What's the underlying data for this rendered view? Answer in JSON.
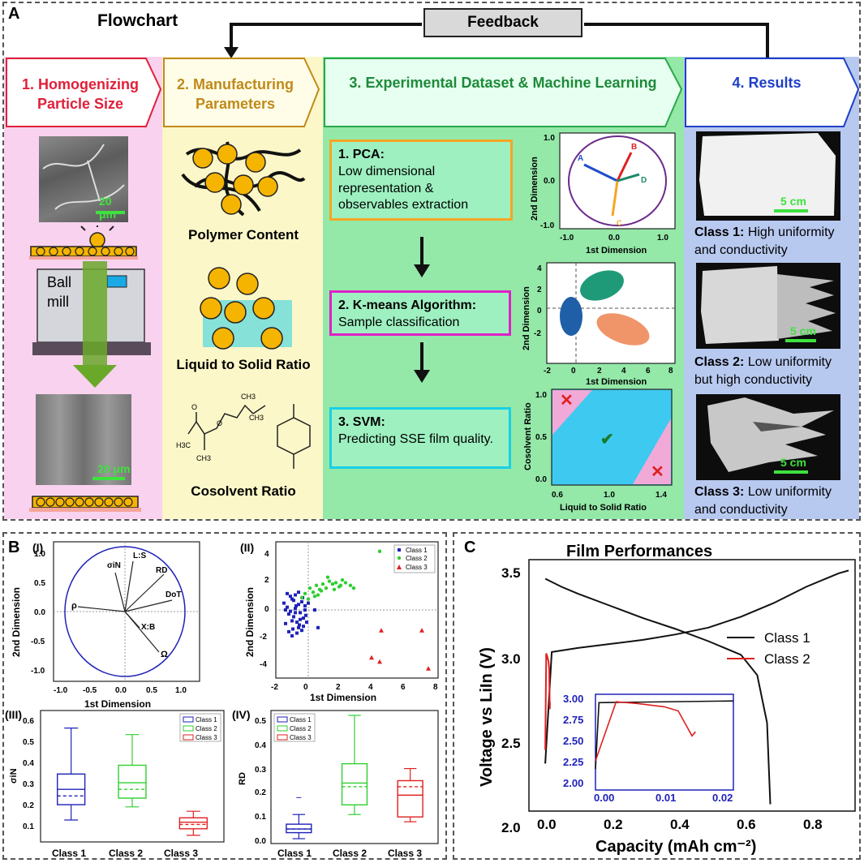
{
  "panel_a": {
    "letter": "A",
    "title": "Flowchart",
    "feedback": "Feedback",
    "col1": {
      "num": "1.",
      "title_l1": "Homogenizing",
      "title_l2": "Particle Size",
      "scale1": "20 μm",
      "scale2": "20 μm",
      "ball_l1": "Ball",
      "ball_l2": "mill"
    },
    "col2": {
      "num": "2.",
      "title_l1": "Manufacturing",
      "title_l2": "Parameters",
      "label1": "Polymer Content",
      "label2": "Liquid to Solid Ratio",
      "label3": "Cosolvent Ratio",
      "mol": {
        "ch3_a": "CH3",
        "ch3_b": "CH3",
        "h3c": "H3C",
        "ch3_c": "CH3",
        "o1": "O",
        "o2": "O"
      }
    },
    "col3": {
      "num": "3.",
      "title": "Experimental Dataset & Machine Learning",
      "box1_title": "1. PCA:",
      "box1_text": "Low dimensional representation & observables extraction",
      "box2_title": "2. K-means Algorithm:",
      "box2_text": "Sample classification",
      "box3_title": "3. SVM:",
      "box3_text": "Predicting SSE film quality.",
      "pca_xlabel": "1st Dimension",
      "pca_ylabel": "2nd Dimension",
      "pca_xticks": [
        "-1.0",
        "0.0",
        "1.0"
      ],
      "pca_yticks": [
        "1.0",
        "0.0",
        "-1.0"
      ],
      "pca_vectors": [
        "A",
        "B",
        "C",
        "D"
      ],
      "km_xlabel": "1st Dimension",
      "km_ylabel": "2nd Dimension",
      "km_xticks": [
        "-2",
        "0",
        "2",
        "4",
        "6",
        "8"
      ],
      "km_yticks": [
        "4",
        "2",
        "0",
        "-2"
      ],
      "svm_xlabel": "Liquid to Solid Ratio",
      "svm_ylabel": "Cosolvent Ratio",
      "svm_xticks": [
        "0.6",
        "1.0",
        "1.4"
      ],
      "svm_yticks": [
        "1.0",
        "0.5",
        "0.0"
      ]
    },
    "col4": {
      "num": "4.",
      "title": "Results",
      "scale": "5 cm",
      "c1_bold": "Class 1:",
      "c1_l1": " High uniformity",
      "c1_l2": "and conductivity",
      "c2_bold": "Class 2:",
      "c2_l1": " Low uniformity",
      "c2_l2": "but high conductivity",
      "c3_bold": "Class 3:",
      "c3_l1": " Low uniformity",
      "c3_l2": "and conductivity"
    }
  },
  "panel_b": {
    "letter": "B",
    "sub1": "(I)",
    "sub2": "(II)",
    "sub3": "(III)",
    "sub4": "(IV)",
    "pca_vectors": [
      "ρ",
      "σiN",
      "L:S",
      "RD",
      "DoT",
      "X:B",
      "Ω"
    ],
    "pca_xticks": [
      "-1.0",
      "-0.5",
      "0.0",
      "0.5",
      "1.0"
    ],
    "pca_yticks": [
      "1.0",
      "0.5",
      "0.0",
      "-0.5",
      "-1.0"
    ],
    "pca_xlabel": "1st Dimension",
    "pca_ylabel": "2nd Dimension",
    "sc_xticks": [
      "-2",
      "0",
      "2",
      "4",
      "6",
      "8"
    ],
    "sc_yticks": [
      "4",
      "2",
      "0",
      "-2",
      "-4"
    ],
    "sc_xlabel": "1st Dimension",
    "sc_ylabel": "2nd Dimension",
    "legend": [
      "Class 1",
      "Class 2",
      "Class 3"
    ],
    "box3_ylabel": "σiN",
    "box3_yticks": [
      "0.6",
      "0.5",
      "0.4",
      "0.3",
      "0.2",
      "0.1"
    ],
    "box4_ylabel": "RD",
    "box4_yticks": [
      "0.5",
      "0.4",
      "0.3",
      "0.2",
      "0.1",
      "0.0"
    ],
    "classes": [
      "Class 1",
      "Class 2",
      "Class 3"
    ],
    "colors": {
      "class1": "#1f22b8",
      "class2": "#2fcf2f",
      "class3": "#e02020"
    }
  },
  "panel_c": {
    "letter": "C",
    "title": "Film Performances",
    "xlabel": "Capacity (mAh cm⁻²)",
    "ylabel": "Voltage vs LiIn (V)",
    "xticks": [
      "0.0",
      "0.2",
      "0.4",
      "0.6",
      "0.8"
    ],
    "yticks": [
      "3.5",
      "3.0",
      "2.5",
      "2.0"
    ],
    "legend": [
      "Class 1",
      "Class 2"
    ],
    "inset_xticks": [
      "0.00",
      "0.01",
      "0.02"
    ],
    "inset_yticks": [
      "3.00",
      "2.75",
      "2.50",
      "2.25",
      "2.00"
    ]
  },
  "chart_data": [
    {
      "type": "scatter",
      "xlabel": "1st Dimension",
      "ylabel": "2nd Dimension",
      "xlim": [
        -2,
        8
      ],
      "ylim": [
        -5,
        5
      ],
      "series": [
        {
          "name": "Class 1",
          "x": [
            -1.5,
            -1.3,
            -1.2,
            -1.0,
            -0.9,
            -0.8,
            -0.7,
            -0.6,
            -0.5,
            -0.4,
            -0.3,
            -0.2,
            -1.4,
            -1.1,
            -0.95,
            -0.75,
            -0.55,
            -0.35,
            -0.15,
            0.0,
            -1.2,
            -1.0,
            -0.8,
            -0.6,
            -0.4,
            -1.3,
            -0.9,
            -0.5,
            -0.1,
            0.4,
            0.6,
            -1.1,
            -0.7,
            -0.3,
            -1.4,
            -0.8,
            -0.2,
            -1.0,
            -0.6
          ],
          "y": [
            0.5,
            0.2,
            -0.3,
            0.8,
            -0.5,
            0.1,
            -0.9,
            0.4,
            -0.2,
            0.6,
            -0.6,
            0.0,
            -1.0,
            1.0,
            -1.4,
            0.3,
            -1.1,
            0.9,
            -0.4,
            0.5,
            -1.6,
            -0.8,
            1.1,
            -1.3,
            -1.5,
            1.2,
            0.7,
            -0.7,
            -0.9,
            0.0,
            -1.3,
            -0.1,
            -1.7,
            -1.2,
            0.0,
            -0.2,
            0.3,
            -1.9,
            1.3
          ]
        },
        {
          "name": "Class 2",
          "x": [
            -0.2,
            0.1,
            0.3,
            0.5,
            0.7,
            0.9,
            1.1,
            1.3,
            1.5,
            1.7,
            1.9,
            2.1,
            2.3,
            2.6,
            2.8,
            0.0,
            0.4,
            0.8,
            1.2,
            1.6,
            2.0,
            4.4,
            -0.4,
            0.6
          ],
          "y": [
            1.2,
            1.6,
            1.3,
            1.8,
            1.5,
            1.9,
            1.6,
            2.1,
            1.9,
            2.0,
            1.7,
            2.2,
            2.0,
            1.8,
            1.6,
            0.8,
            1.0,
            1.4,
            2.4,
            1.5,
            1.8,
            4.3,
            0.9,
            1.1
          ]
        },
        {
          "name": "Class 3",
          "x": [
            3.9,
            4.4,
            4.5,
            7.0,
            7.4
          ],
          "y": [
            -3.5,
            -3.8,
            -1.5,
            -1.5,
            -4.3
          ]
        }
      ]
    },
    {
      "type": "box",
      "ylabel": "σiN",
      "categories": [
        "Class 1",
        "Class 2",
        "Class 3"
      ],
      "stats": [
        {
          "min": 0.15,
          "q1": 0.22,
          "median": 0.29,
          "mean": 0.26,
          "q3": 0.36,
          "max": 0.57
        },
        {
          "min": 0.21,
          "q1": 0.25,
          "median": 0.32,
          "mean": 0.29,
          "q3": 0.4,
          "max": 0.54
        },
        {
          "min": 0.08,
          "q1": 0.11,
          "median": 0.14,
          "mean": 0.13,
          "q3": 0.16,
          "max": 0.19
        }
      ],
      "ylim": [
        0.05,
        0.65
      ]
    },
    {
      "type": "box",
      "ylabel": "RD",
      "categories": [
        "Class 1",
        "Class 2",
        "Class 3"
      ],
      "stats": [
        {
          "min": 0.02,
          "q1": 0.045,
          "median": 0.06,
          "mean": 0.06,
          "q3": 0.08,
          "max": 0.12,
          "outlier": 0.19
        },
        {
          "min": 0.12,
          "q1": 0.16,
          "median": 0.25,
          "mean": 0.235,
          "q3": 0.33,
          "max": 0.53
        },
        {
          "min": 0.09,
          "q1": 0.11,
          "median": 0.2,
          "mean": 0.235,
          "q3": 0.26,
          "max": 0.31
        }
      ],
      "ylim": [
        0.0,
        0.55
      ]
    },
    {
      "type": "line",
      "title": "Film Performances",
      "xlabel": "Capacity (mAh cm⁻²)",
      "ylabel": "Voltage vs LiIn (V)",
      "xlim": [
        -0.05,
        0.95
      ],
      "ylim": [
        1.85,
        3.7
      ],
      "series": [
        {
          "name": "Class 1 charge",
          "x": [
            0.0,
            0.02,
            0.1,
            0.2,
            0.3,
            0.4,
            0.5,
            0.6,
            0.7,
            0.8,
            0.9,
            0.93
          ],
          "y": [
            2.2,
            3.02,
            3.05,
            3.08,
            3.11,
            3.15,
            3.2,
            3.28,
            3.38,
            3.5,
            3.6,
            3.62
          ]
        },
        {
          "name": "Class 1 discharge",
          "x": [
            0.0,
            0.05,
            0.1,
            0.2,
            0.3,
            0.4,
            0.5,
            0.6,
            0.65,
            0.68,
            0.69
          ],
          "y": [
            3.56,
            3.5,
            3.45,
            3.36,
            3.27,
            3.19,
            3.1,
            3.0,
            2.85,
            2.5,
            1.9
          ]
        },
        {
          "name": "Class 2",
          "x": [
            0.0,
            0.003,
            0.006,
            0.01,
            0.012,
            0.014,
            0.0145
          ],
          "y": [
            2.3,
            3.01,
            2.99,
            2.95,
            2.9,
            2.6,
            2.65
          ]
        }
      ]
    }
  ]
}
